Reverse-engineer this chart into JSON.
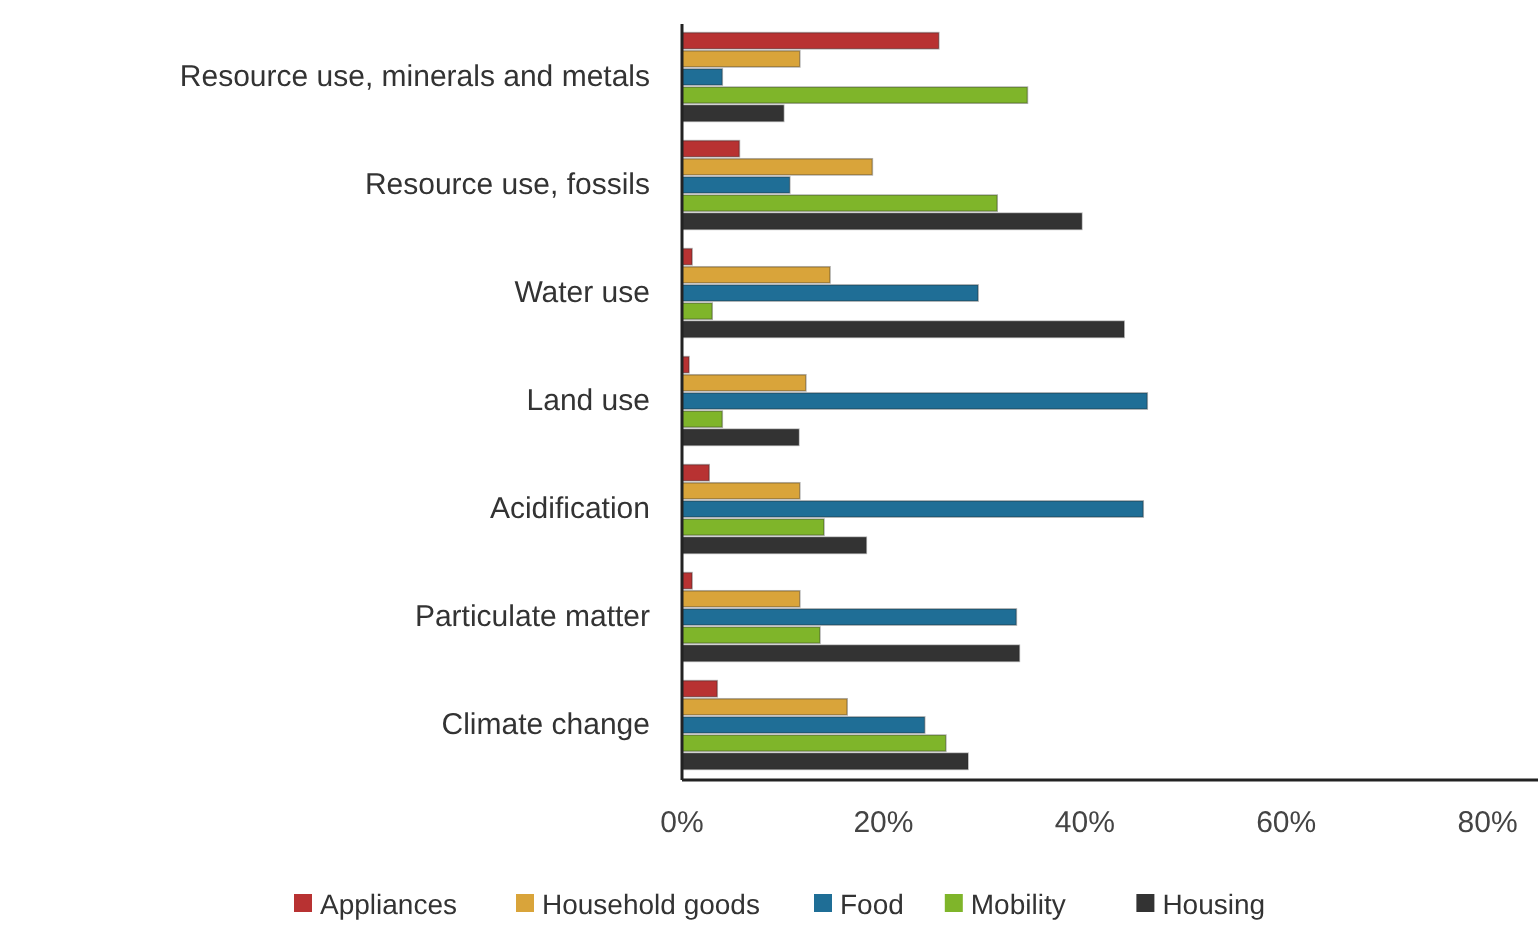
{
  "chart_data": {
    "type": "bar",
    "orientation": "horizontal",
    "categories": [
      "Resource use, minerals and metals",
      "Resource use, fossils",
      "Water use",
      "Land use",
      "Acidification",
      "Particulate matter",
      "Climate change"
    ],
    "series": [
      {
        "name": "Appliances",
        "color": "#b83232",
        "values": [
          25.5,
          5.7,
          1.0,
          0.7,
          2.7,
          1.0,
          3.5
        ]
      },
      {
        "name": "Household goods",
        "color": "#d9a43a",
        "values": [
          11.7,
          18.9,
          14.7,
          12.3,
          11.7,
          11.7,
          16.4
        ]
      },
      {
        "name": "Food",
        "color": "#1f6e96",
        "values": [
          4.0,
          10.7,
          29.4,
          46.2,
          45.8,
          33.2,
          24.1
        ]
      },
      {
        "name": "Mobility",
        "color": "#7fb52a",
        "values": [
          34.3,
          31.3,
          3.0,
          4.0,
          14.1,
          13.7,
          26.2
        ]
      },
      {
        "name": "Housing",
        "color": "#333333",
        "values": [
          10.1,
          39.7,
          43.9,
          11.6,
          18.3,
          33.5,
          28.4
        ]
      }
    ],
    "xlim": [
      0,
      85
    ],
    "xticks": [
      {
        "value": 0,
        "label": "0%"
      },
      {
        "value": 20,
        "label": "20%"
      },
      {
        "value": 40,
        "label": "40%"
      },
      {
        "value": 60,
        "label": "60%"
      },
      {
        "value": 80,
        "label": "80%"
      }
    ],
    "grid": false,
    "legend": "bottom"
  }
}
